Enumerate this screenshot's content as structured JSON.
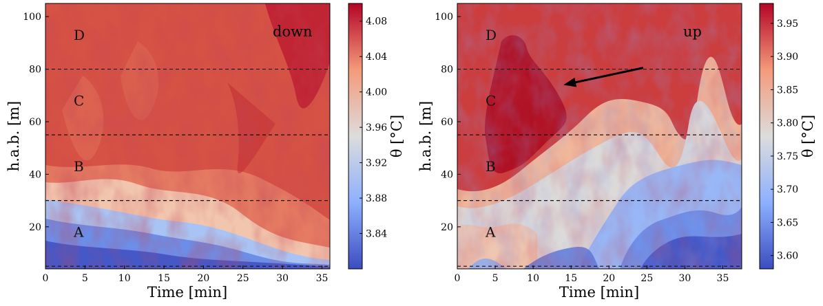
{
  "chart_data": [
    {
      "type": "heatmap",
      "annotation": "down",
      "xlabel": "Time [min]",
      "ylabel": "h.a.b. [m]",
      "xlim": [
        0,
        36
      ],
      "ylim": [
        4,
        105
      ],
      "xticks": [
        0,
        5,
        10,
        15,
        20,
        25,
        30,
        35
      ],
      "yticks": [
        20,
        40,
        60,
        80,
        100
      ],
      "hlines": [
        5,
        30,
        55,
        80
      ],
      "regions": [
        {
          "label": "A",
          "y": 18
        },
        {
          "label": "B",
          "y": 43
        },
        {
          "label": "C",
          "y": 68
        },
        {
          "label": "D",
          "y": 93
        }
      ],
      "colorbar": {
        "label": "θ [°C]",
        "range": [
          3.8,
          4.1
        ],
        "ticks": [
          3.84,
          3.88,
          3.92,
          3.96,
          4.0,
          4.04,
          4.08
        ]
      },
      "description_values": {
        "interface_height_vs_time": [
          [
            0,
            30
          ],
          [
            5,
            25
          ],
          [
            10,
            22
          ],
          [
            15,
            18
          ],
          [
            20,
            17
          ],
          [
            25,
            12
          ],
          [
            30,
            10
          ],
          [
            36,
            8
          ]
        ]
      }
    },
    {
      "type": "heatmap",
      "annotation": "up",
      "xlabel": "Time [min]",
      "ylabel": "h.a.b. [m]",
      "xlim": [
        0,
        37.5
      ],
      "ylim": [
        4,
        105
      ],
      "xticks": [
        0,
        5,
        10,
        15,
        20,
        25,
        30,
        35
      ],
      "yticks": [
        20,
        40,
        60,
        80,
        100
      ],
      "hlines": [
        5,
        30,
        55,
        80
      ],
      "regions": [
        {
          "label": "A",
          "y": 18
        },
        {
          "label": "B",
          "y": 43
        },
        {
          "label": "C",
          "y": 68
        },
        {
          "label": "D",
          "y": 93
        }
      ],
      "arrow": {
        "from": [
          24.5,
          80.5
        ],
        "to": [
          14,
          74
        ]
      },
      "colorbar": {
        "label": "θ [°C]",
        "range": [
          3.58,
          3.98
        ],
        "ticks": [
          3.6,
          3.65,
          3.7,
          3.75,
          3.8,
          3.85,
          3.9,
          3.95
        ]
      },
      "description_values": {
        "interface_height_vs_time": [
          [
            0,
            35
          ],
          [
            5,
            40
          ],
          [
            10,
            45
          ],
          [
            15,
            55
          ],
          [
            20,
            62
          ],
          [
            25,
            66
          ],
          [
            30,
            78
          ],
          [
            33,
            85
          ],
          [
            37.5,
            60
          ]
        ]
      }
    }
  ]
}
